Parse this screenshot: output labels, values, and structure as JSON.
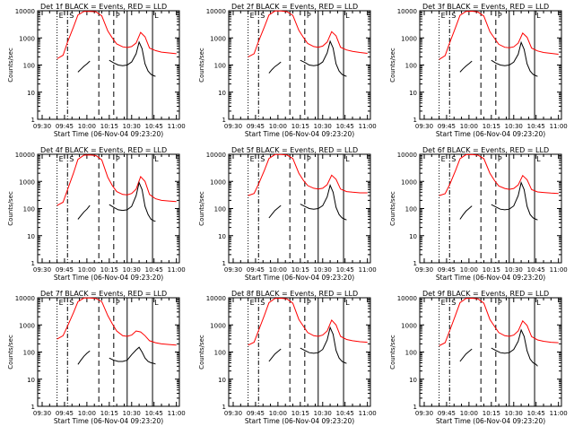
{
  "chart_data": {
    "type": "line",
    "y_scale": "log",
    "ylim": [
      1,
      10000
    ],
    "y_ticks": [
      "1",
      "10",
      "100",
      "1000",
      "10000"
    ],
    "x_ticks": [
      "09:30",
      "09:45",
      "10:00",
      "10:15",
      "10:30",
      "10:45",
      "11:00"
    ],
    "x_tick_minutes": [
      0,
      15,
      30,
      45,
      60,
      75,
      90
    ],
    "xlim_minutes": [
      -3,
      92
    ],
    "xlabel": "Start Time (06-Nov-04 09:23:20)",
    "ylabel": "Counts/sec",
    "colors": {
      "events": "#000000",
      "lld": "#ff0000"
    },
    "markers": [
      {
        "minute": 10,
        "style": "dot",
        "label": "E"
      },
      {
        "minute": 17,
        "style": "dashdot",
        "label": "S"
      },
      {
        "minute": 38,
        "style": "dash",
        "label": ""
      },
      {
        "minute": 48,
        "style": "dash",
        "label": "P"
      },
      {
        "minute": 57,
        "style": "solid",
        "label": ""
      },
      {
        "minute": 74,
        "style": "solid",
        "label": "L"
      }
    ],
    "panels": [
      {
        "title": "Det 1f BLACK = Events, RED = LLD",
        "lld": {
          "x": [
            10,
            14,
            17,
            21,
            24,
            28,
            32,
            36,
            40,
            44,
            47,
            50,
            54,
            57,
            60,
            63,
            66,
            69,
            72,
            76,
            80,
            85,
            90
          ],
          "y": [
            170,
            230,
            700,
            2500,
            7000,
            9500,
            9500,
            9200,
            6500,
            1800,
            1000,
            600,
            470,
            440,
            480,
            650,
            1600,
            1100,
            420,
            340,
            300,
            280,
            260
          ]
        },
        "events": {
          "x": [
            24,
            26,
            28,
            30,
            32,
            45,
            48,
            51,
            54,
            57,
            60,
            63,
            65,
            67,
            69,
            71,
            73,
            75,
            76
          ],
          "y": [
            55,
            70,
            90,
            110,
            140,
            150,
            120,
            100,
            95,
            100,
            130,
            260,
            700,
            400,
            110,
            60,
            45,
            40,
            38
          ]
        }
      },
      {
        "title": "Det 2f BLACK = Events, RED = LLD",
        "lld": {
          "x": [
            10,
            14,
            17,
            21,
            24,
            28,
            32,
            36,
            40,
            44,
            47,
            50,
            54,
            57,
            60,
            63,
            66,
            69,
            72,
            76,
            80,
            85,
            90
          ],
          "y": [
            200,
            260,
            750,
            2600,
            7000,
            9800,
            9800,
            9300,
            6800,
            1900,
            1050,
            620,
            480,
            450,
            500,
            700,
            1700,
            1200,
            450,
            360,
            320,
            290,
            270
          ]
        },
        "events": {
          "x": [
            24,
            26,
            28,
            30,
            32,
            45,
            48,
            51,
            54,
            57,
            60,
            63,
            65,
            67,
            69,
            71,
            73,
            75,
            76
          ],
          "y": [
            50,
            68,
            88,
            105,
            130,
            150,
            125,
            100,
            95,
            100,
            130,
            280,
            750,
            420,
            110,
            60,
            45,
            40,
            38
          ]
        }
      },
      {
        "title": "Det 3f BLACK = Events, RED = LLD",
        "lld": {
          "x": [
            10,
            14,
            17,
            21,
            24,
            28,
            32,
            36,
            40,
            44,
            47,
            50,
            54,
            57,
            60,
            63,
            66,
            69,
            72,
            76,
            80,
            85,
            90
          ],
          "y": [
            160,
            220,
            650,
            2400,
            6800,
            9500,
            9600,
            9000,
            6400,
            1700,
            980,
            580,
            450,
            430,
            470,
            640,
            1500,
            1050,
            420,
            330,
            290,
            270,
            250
          ]
        },
        "events": {
          "x": [
            24,
            26,
            28,
            30,
            32,
            45,
            48,
            51,
            54,
            57,
            60,
            63,
            65,
            67,
            69,
            71,
            73,
            75,
            76
          ],
          "y": [
            55,
            72,
            92,
            112,
            140,
            150,
            118,
            100,
            95,
            100,
            128,
            250,
            680,
            380,
            110,
            60,
            45,
            40,
            38
          ]
        }
      },
      {
        "title": "Det 4f BLACK = Events, RED = LLD",
        "lld": {
          "x": [
            10,
            14,
            17,
            21,
            24,
            28,
            32,
            36,
            40,
            44,
            47,
            50,
            54,
            57,
            60,
            63,
            66,
            69,
            72,
            76,
            80,
            85,
            90
          ],
          "y": [
            130,
            170,
            500,
            2000,
            6500,
            9300,
            9500,
            9000,
            6200,
            1400,
            700,
            420,
            330,
            320,
            360,
            520,
            1500,
            1000,
            330,
            230,
            200,
            190,
            180
          ]
        },
        "events": {
          "x": [
            24,
            26,
            28,
            30,
            32,
            45,
            48,
            51,
            54,
            57,
            60,
            63,
            65,
            67,
            69,
            71,
            73,
            75,
            76
          ],
          "y": [
            40,
            55,
            75,
            95,
            130,
            140,
            110,
            90,
            85,
            90,
            120,
            300,
            900,
            500,
            120,
            60,
            40,
            35,
            34
          ]
        }
      },
      {
        "title": "Det 5f BLACK = Events, RED = LLD",
        "lld": {
          "x": [
            10,
            14,
            17,
            21,
            24,
            28,
            32,
            36,
            40,
            44,
            47,
            50,
            54,
            57,
            60,
            63,
            66,
            69,
            72,
            76,
            80,
            85,
            90
          ],
          "y": [
            300,
            360,
            800,
            2600,
            7000,
            9800,
            9800,
            9400,
            7000,
            2000,
            1100,
            700,
            560,
            520,
            560,
            760,
            1700,
            1200,
            520,
            420,
            400,
            380,
            380
          ]
        },
        "events": {
          "x": [
            24,
            26,
            28,
            30,
            32,
            45,
            48,
            51,
            54,
            57,
            60,
            63,
            65,
            67,
            69,
            71,
            73,
            75,
            76
          ],
          "y": [
            45,
            62,
            85,
            105,
            130,
            145,
            120,
            100,
            95,
            100,
            128,
            270,
            720,
            400,
            110,
            60,
            45,
            40,
            38
          ]
        }
      },
      {
        "title": "Det 6f BLACK = Events, RED = LLD",
        "lld": {
          "x": [
            10,
            14,
            17,
            21,
            24,
            28,
            32,
            36,
            40,
            44,
            47,
            50,
            54,
            57,
            60,
            63,
            66,
            69,
            72,
            76,
            80,
            85,
            90
          ],
          "y": [
            300,
            350,
            750,
            2500,
            6900,
            9700,
            9800,
            9300,
            6900,
            2000,
            1100,
            680,
            550,
            510,
            550,
            740,
            1650,
            1150,
            500,
            410,
            390,
            370,
            360
          ]
        },
        "events": {
          "x": [
            24,
            26,
            28,
            30,
            32,
            45,
            48,
            51,
            54,
            57,
            60,
            63,
            65,
            67,
            69,
            71,
            73,
            75,
            76
          ],
          "y": [
            40,
            58,
            80,
            100,
            125,
            140,
            115,
            95,
            90,
            95,
            125,
            300,
            900,
            500,
            120,
            60,
            45,
            40,
            38
          ]
        }
      },
      {
        "title": "Det 7f BLACK = Events, RED = LLD",
        "lld": {
          "x": [
            10,
            14,
            17,
            21,
            24,
            28,
            32,
            36,
            40,
            44,
            47,
            50,
            54,
            57,
            60,
            63,
            66,
            69,
            72,
            76,
            80,
            85,
            90
          ],
          "y": [
            300,
            400,
            900,
            2800,
            7200,
            9800,
            9800,
            9500,
            7200,
            2200,
            1100,
            600,
            400,
            380,
            420,
            600,
            550,
            400,
            260,
            220,
            200,
            190,
            180
          ]
        },
        "events": {
          "x": [
            24,
            26,
            28,
            30,
            32,
            45,
            48,
            51,
            54,
            57,
            60,
            63,
            65,
            67,
            69,
            71,
            73,
            75,
            76
          ],
          "y": [
            35,
            50,
            70,
            90,
            110,
            60,
            50,
            45,
            45,
            50,
            80,
            120,
            150,
            100,
            60,
            45,
            40,
            38,
            36
          ]
        }
      },
      {
        "title": "Det 8f BLACK = Events, RED = LLD",
        "lld": {
          "x": [
            10,
            14,
            17,
            21,
            24,
            28,
            32,
            36,
            40,
            44,
            47,
            50,
            54,
            57,
            60,
            63,
            66,
            69,
            72,
            76,
            80,
            85,
            90
          ],
          "y": [
            180,
            230,
            620,
            2300,
            6600,
            9500,
            9600,
            9100,
            6300,
            1600,
            900,
            520,
            400,
            380,
            420,
            600,
            1500,
            1000,
            380,
            290,
            260,
            240,
            230
          ]
        },
        "events": {
          "x": [
            24,
            26,
            28,
            30,
            32,
            45,
            48,
            51,
            54,
            57,
            60,
            63,
            65,
            67,
            69,
            71,
            73,
            75,
            76
          ],
          "y": [
            45,
            62,
            85,
            105,
            130,
            140,
            115,
            95,
            90,
            95,
            125,
            280,
            800,
            450,
            115,
            60,
            45,
            40,
            38
          ]
        }
      },
      {
        "title": "Det 9f BLACK = Events, RED = LLD",
        "lld": {
          "x": [
            10,
            14,
            17,
            21,
            24,
            28,
            32,
            36,
            40,
            44,
            47,
            50,
            54,
            57,
            60,
            63,
            66,
            69,
            72,
            76,
            80,
            85,
            90
          ],
          "y": [
            170,
            220,
            600,
            2300,
            6600,
            9500,
            9600,
            9100,
            6300,
            1600,
            900,
            520,
            400,
            380,
            420,
            600,
            1400,
            950,
            370,
            280,
            250,
            230,
            220
          ]
        },
        "events": {
          "x": [
            24,
            26,
            28,
            30,
            32,
            45,
            48,
            51,
            54,
            57,
            60,
            63,
            65,
            67,
            69,
            71,
            73,
            75,
            76
          ],
          "y": [
            45,
            62,
            85,
            105,
            130,
            140,
            115,
            95,
            90,
            95,
            125,
            250,
            650,
            380,
            110,
            55,
            40,
            35,
            30
          ]
        }
      }
    ]
  }
}
